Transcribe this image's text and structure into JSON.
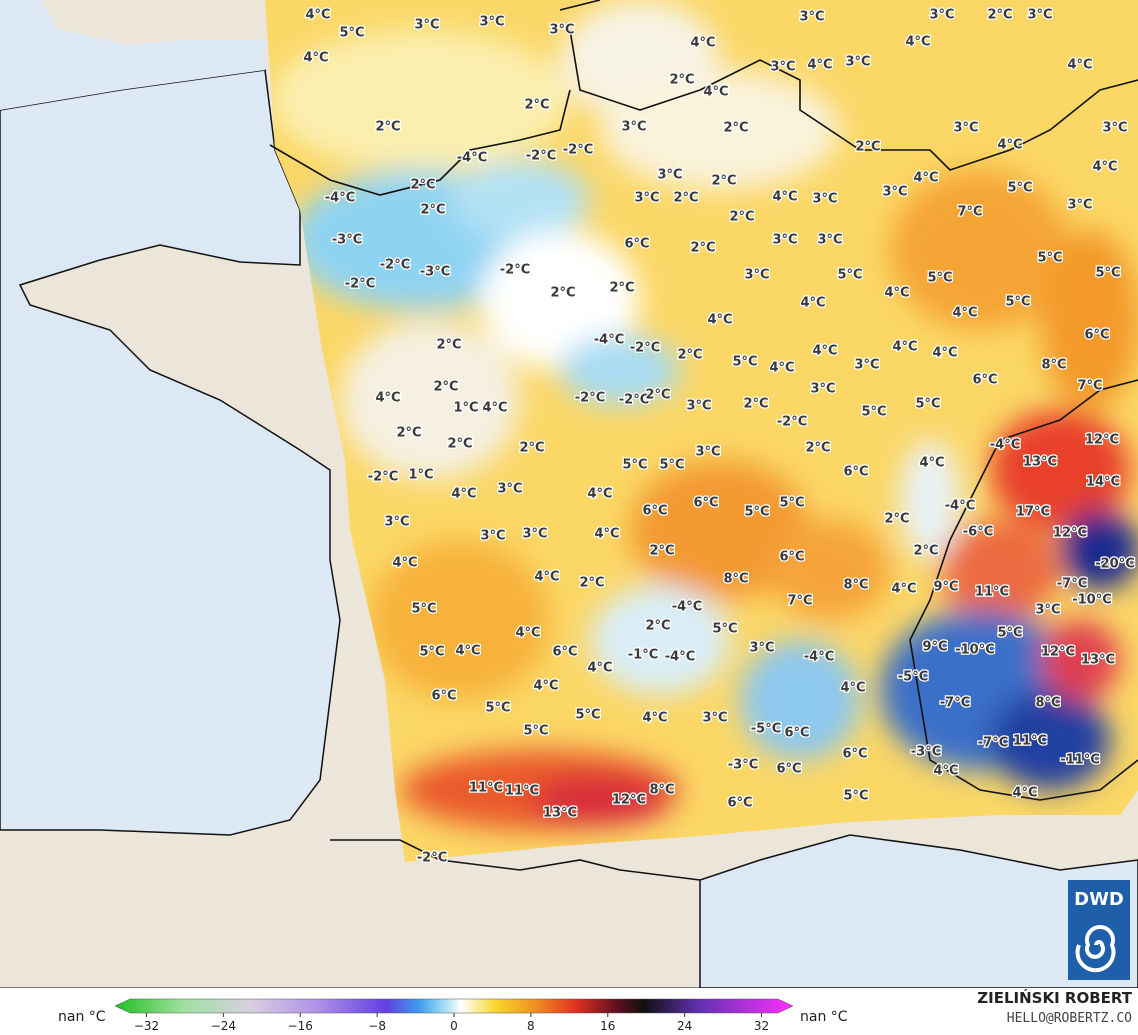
{
  "map_labels": [
    "4°C",
    "3°C",
    "3°C",
    "5°C",
    "3°C",
    "4°C",
    "2°C",
    "2°C",
    "3°C",
    "3°C",
    "2°C",
    "3°C",
    "4°C",
    "4°C",
    "2°C",
    "4°C",
    "3°C",
    "4°C",
    "3°C",
    "4°C",
    "3°C",
    "2°C",
    "3°C",
    "3°C",
    "-4°C",
    "-2°C",
    "-2°C",
    "2°C",
    "4°C",
    "4°C",
    "2°C",
    "3°C",
    "2°C",
    "3°C",
    "4°C",
    "5°C",
    "3°C",
    "-4°C",
    "2°C",
    "3°C",
    "2°C",
    "4°C",
    "3°C",
    "7°C",
    "2°C",
    "-3°C",
    "6°C",
    "2°C",
    "3°C",
    "3°C",
    "-2°C",
    "-3°C",
    "-2°C",
    "3°C",
    "5°C",
    "5°C",
    "5°C",
    "5°C",
    "-2°C",
    "2°C",
    "2°C",
    "4°C",
    "4°C",
    "5°C",
    "4°C",
    "4°C",
    "6°C",
    "2°C",
    "-4°C",
    "-2°C",
    "2°C",
    "5°C",
    "4°C",
    "4°C",
    "3°C",
    "4°C",
    "4°C",
    "8°C",
    "6°C",
    "2°C",
    "3°C",
    "7°C",
    "4°C",
    "1°C",
    "4°C",
    "-2°C",
    "-2°C",
    "2°C",
    "3°C",
    "2°C",
    "5°C",
    "5°C",
    "-2°C",
    "2°C",
    "2°C",
    "2°C",
    "2°C",
    "-4°C",
    "12°C",
    "3°C",
    "5°C",
    "5°C",
    "6°C",
    "4°C",
    "13°C",
    "-2°C",
    "1°C",
    "14°C",
    "4°C",
    "3°C",
    "4°C",
    "6°C",
    "5°C",
    "6°C",
    "5°C",
    "-4°C",
    "17°C",
    "3°C",
    "2°C",
    "3°C",
    "3°C",
    "4°C",
    "-6°C",
    "12°C",
    "2°C",
    "6°C",
    "2°C",
    "4°C",
    "4°C",
    "2°C",
    "8°C",
    "8°C",
    "4°C",
    "9°C",
    "11°C",
    "-20°C",
    "-7°C",
    "7°C",
    "-10°C",
    "5°C",
    "-4°C",
    "3°C",
    "4°C",
    "2°C",
    "5°C",
    "5°C",
    "5°C",
    "4°C",
    "6°C",
    "4°C",
    "-1°C",
    "-4°C",
    "3°C",
    "-4°C",
    "9°C",
    "-10°C",
    "12°C",
    "13°C",
    "-5°C",
    "4°C",
    "4°C",
    "6°C",
    "-7°C",
    "8°C",
    "5°C",
    "5°C",
    "4°C",
    "3°C",
    "5°C",
    "-5°C",
    "6°C",
    "-7°C",
    "11°C",
    "6°C",
    "-3°C",
    "-11°C",
    "-3°C",
    "6°C",
    "4°C",
    "11°C",
    "11°C",
    "8°C",
    "12°C",
    "4°C",
    "5°C",
    "6°C",
    "13°C",
    "-2°C"
  ],
  "legend": {
    "left_label": "nan °C",
    "right_label": "nan °C",
    "ticks": [
      {
        "value": -32,
        "label": "−32"
      },
      {
        "value": -24,
        "label": "−24"
      },
      {
        "value": -16,
        "label": "−16"
      },
      {
        "value": -8,
        "label": "−8"
      },
      0,
      8,
      16,
      24,
      32
    ]
  },
  "credit": {
    "author": "ZIELIŃSKI ROBERT",
    "contact": "HELLO@ROBERTZ.CO"
  },
  "logo": "DWD"
}
